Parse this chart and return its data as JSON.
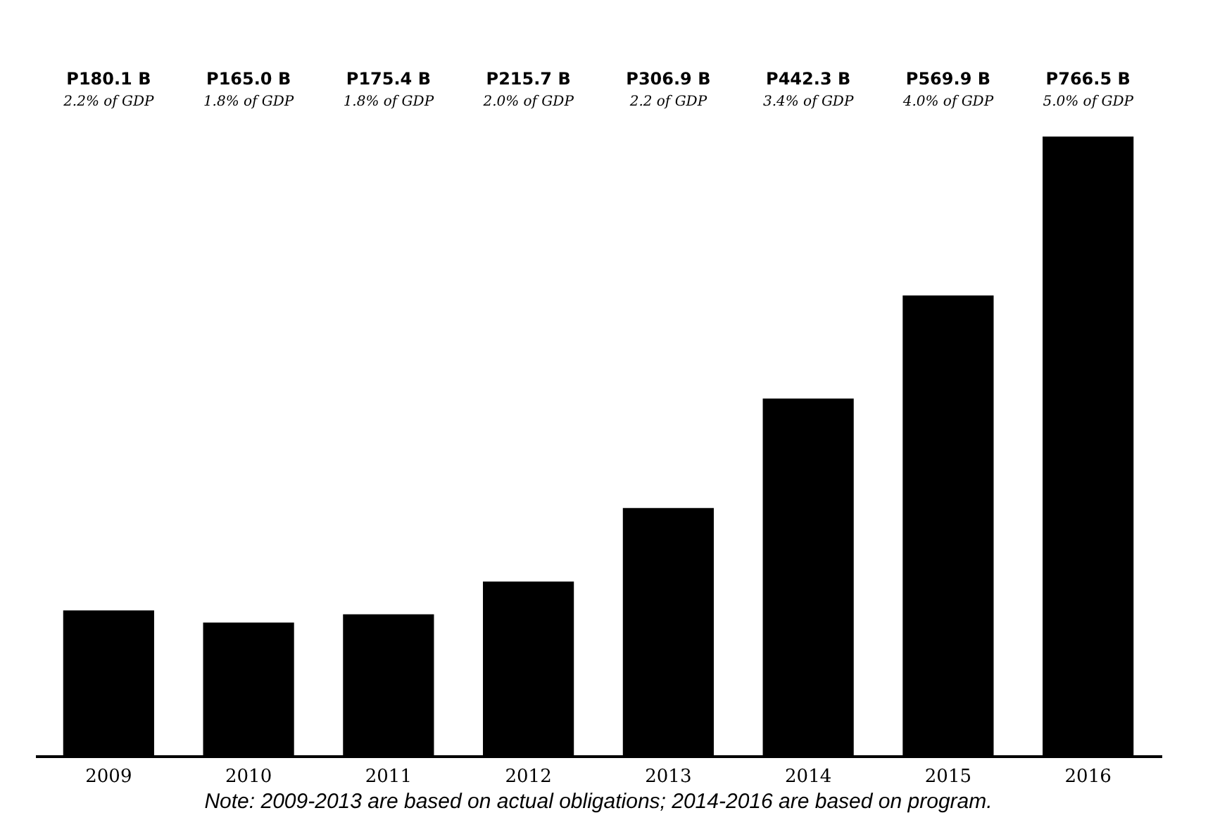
{
  "chart_data": {
    "type": "bar",
    "categories": [
      "2009",
      "2010",
      "2011",
      "2012",
      "2013",
      "2014",
      "2015",
      "2016"
    ],
    "values": [
      180.1,
      165.0,
      175.4,
      215.7,
      306.9,
      442.3,
      569.9,
      766.5
    ],
    "color": "#000000",
    "value_labels": [
      "P180.1 B",
      "P165.0 B",
      "P175.4 B",
      "P215.7 B",
      "P306.9 B",
      "P442.3 B",
      "P569.9 B",
      "P766.5 B"
    ],
    "annotations": [
      "2.2% of GDP",
      "1.8% of GDP",
      "1.8% of GDP",
      "2.0% of GDP",
      "2.2 of GDP",
      "3.4% of GDP",
      "4.0% of GDP",
      "5.0% of GDP",
      "Note: 2009-2013 are based on actual obligations; 2014-2016 are based on program."
    ],
    "grid": false
  }
}
